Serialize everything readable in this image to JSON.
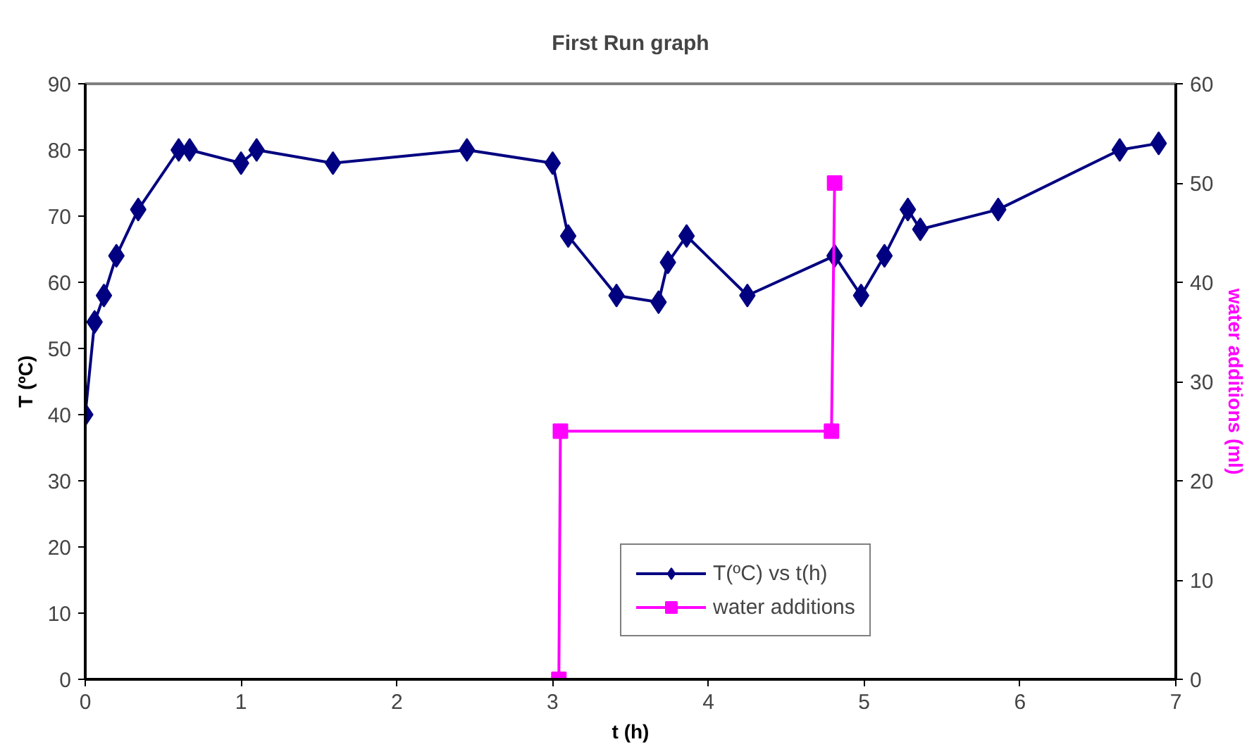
{
  "chart_data": {
    "type": "line",
    "title": "First Run graph",
    "xlabel": "t (h)",
    "ylabel": "T (ºC)",
    "y2label": "water additions (ml)",
    "xlim": [
      0,
      7
    ],
    "xticks": [
      0,
      1,
      2,
      3,
      4,
      5,
      6,
      7
    ],
    "ylim": [
      0,
      90
    ],
    "yticks": [
      0,
      10,
      20,
      30,
      40,
      50,
      60,
      70,
      80,
      90
    ],
    "y2lim": [
      0,
      60
    ],
    "y2ticks": [
      0,
      10,
      20,
      30,
      40,
      50,
      60
    ],
    "grid": false,
    "legend": "bottom right",
    "series": [
      {
        "name": "T(ºC) vs t(h)",
        "color": "#000080",
        "marker": "diamond",
        "x": [
          0,
          0.06,
          0.12,
          0.2,
          0.34,
          0.6,
          0.67,
          1.0,
          1.1,
          1.59,
          2.45,
          3.0,
          3.1,
          3.41,
          3.68,
          3.74,
          3.86,
          4.25,
          4.81,
          4.98,
          5.13,
          5.28,
          5.36,
          5.86,
          6.64,
          6.89
        ],
        "values": [
          40,
          54,
          58,
          64,
          71,
          80,
          80,
          78,
          80,
          78,
          80,
          78,
          67,
          58,
          57,
          63,
          67,
          58,
          64,
          58,
          64,
          71,
          68,
          71,
          80,
          81
        ]
      },
      {
        "name": "water additions",
        "color": "#ff00ff",
        "marker": "square",
        "axis": "y2",
        "x": [
          3.04,
          3.05,
          4.79,
          4.81
        ],
        "values": [
          0,
          25,
          25,
          50
        ]
      }
    ]
  }
}
